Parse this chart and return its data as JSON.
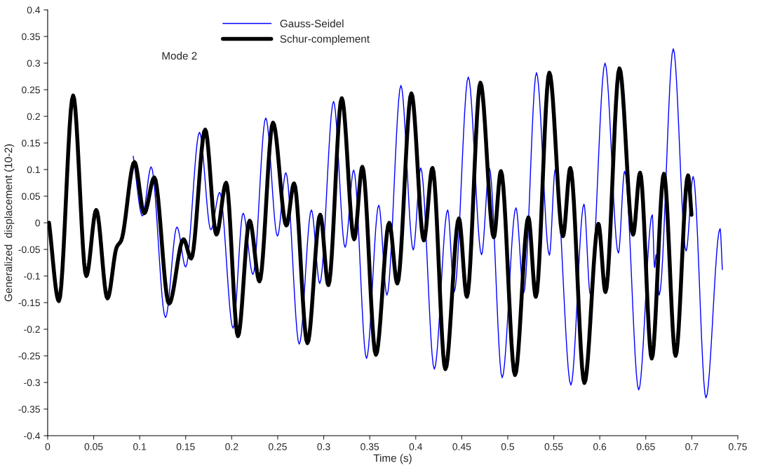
{
  "chart_data": {
    "type": "line",
    "xlabel": "Time (s)",
    "ylabel": "Generalized  displacement (10-2)",
    "annotations": [
      "Mode 2"
    ],
    "xlim": [
      0,
      0.75
    ],
    "xticks": [
      0,
      0.05,
      0.1,
      0.15,
      0.2,
      0.25,
      0.3,
      0.35,
      0.4,
      0.45,
      0.5,
      0.55,
      0.6,
      0.65,
      0.7,
      0.75
    ],
    "ylim": [
      -0.4,
      0.4
    ],
    "yticks": [
      -0.4,
      -0.35,
      -0.3,
      -0.25,
      -0.2,
      -0.15,
      -0.1,
      -0.05,
      0,
      0.05,
      0.1,
      0.15,
      0.2,
      0.25,
      0.3,
      0.35,
      0.4
    ],
    "grid": false,
    "legend": "top",
    "marker": "none",
    "line_style": "solid",
    "series": [
      {
        "name": "Gauss-Seidel",
        "color": "#0000ff",
        "x": [
          0.093,
          0.103,
          0.1125,
          0.128,
          0.1405,
          0.15,
          0.165,
          0.1773,
          0.187,
          0.2015,
          0.2124,
          0.2231,
          0.237,
          0.2497,
          0.2589,
          0.2734,
          0.2866,
          0.2957,
          0.3107,
          0.3232,
          0.3326,
          0.3465,
          0.3598,
          0.3687,
          0.3839,
          0.3973,
          0.4055,
          0.4202,
          0.4347,
          0.4418,
          0.4571,
          0.4715,
          0.48,
          0.4939,
          0.5089,
          0.5173,
          0.5312,
          0.5452,
          0.5516,
          0.5686,
          0.5828,
          0.5897,
          0.6057,
          0.6202,
          0.627,
          0.6423,
          0.657,
          0.6596,
          0.6612,
          0.6646,
          0.6799,
          0.6938,
          0.7015,
          0.7154,
          0.7307,
          0.7332
        ],
        "values": [
          0.125,
          0.013,
          0.105,
          -0.178,
          -0.008,
          -0.083,
          0.17,
          -0.013,
          0.057,
          -0.198,
          0.018,
          -0.097,
          0.197,
          -0.025,
          0.094,
          -0.228,
          0.024,
          -0.114,
          0.228,
          -0.046,
          0.099,
          -0.255,
          0.033,
          -0.136,
          0.258,
          -0.051,
          0.103,
          -0.275,
          0.024,
          -0.13,
          0.274,
          -0.06,
          0.103,
          -0.291,
          0.028,
          -0.132,
          0.282,
          -0.061,
          0.1,
          -0.305,
          0.035,
          -0.134,
          0.3,
          -0.057,
          0.097,
          -0.314,
          0.015,
          -0.084,
          -0.06,
          -0.136,
          0.327,
          -0.053,
          0.087,
          -0.329,
          -0.011,
          -0.088
        ]
      },
      {
        "name": "Schur-complement",
        "color": "#000000",
        "x": [
          0.0015,
          0.0122,
          0.0277,
          0.042,
          0.0528,
          0.065,
          0.075,
          0.08,
          0.0943,
          0.105,
          0.1159,
          0.1319,
          0.1476,
          0.156,
          0.1712,
          0.1834,
          0.194,
          0.2068,
          0.2195,
          0.2302,
          0.2449,
          0.2594,
          0.2678,
          0.2823,
          0.2962,
          0.3051,
          0.3196,
          0.3331,
          0.342,
          0.3567,
          0.3712,
          0.38,
          0.3953,
          0.4088,
          0.4182,
          0.4322,
          0.4469,
          0.4556,
          0.4703,
          0.4848,
          0.4926,
          0.5079,
          0.5224,
          0.5305,
          0.5452,
          0.56,
          0.568,
          0.5833,
          0.5985,
          0.6062,
          0.6214,
          0.6362,
          0.6438,
          0.6565,
          0.6697,
          0.6824,
          0.6959,
          0.6997
        ],
        "values": [
          0,
          -0.147,
          0.239,
          -0.1,
          0.024,
          -0.142,
          -0.046,
          -0.033,
          0.114,
          0.018,
          0.085,
          -0.152,
          -0.031,
          -0.067,
          0.175,
          -0.022,
          0.075,
          -0.213,
          0.004,
          -0.11,
          0.188,
          -0.005,
          0.074,
          -0.226,
          0.015,
          -0.117,
          0.234,
          -0.031,
          0.105,
          -0.248,
          0,
          -0.114,
          0.243,
          -0.033,
          0.103,
          -0.275,
          0.008,
          -0.139,
          0.263,
          -0.027,
          0.097,
          -0.286,
          0.01,
          -0.139,
          0.282,
          -0.025,
          0.103,
          -0.301,
          -0.002,
          -0.13,
          0.29,
          -0.022,
          0.094,
          -0.255,
          0.092,
          -0.25,
          0.089,
          0.015
        ]
      }
    ]
  }
}
